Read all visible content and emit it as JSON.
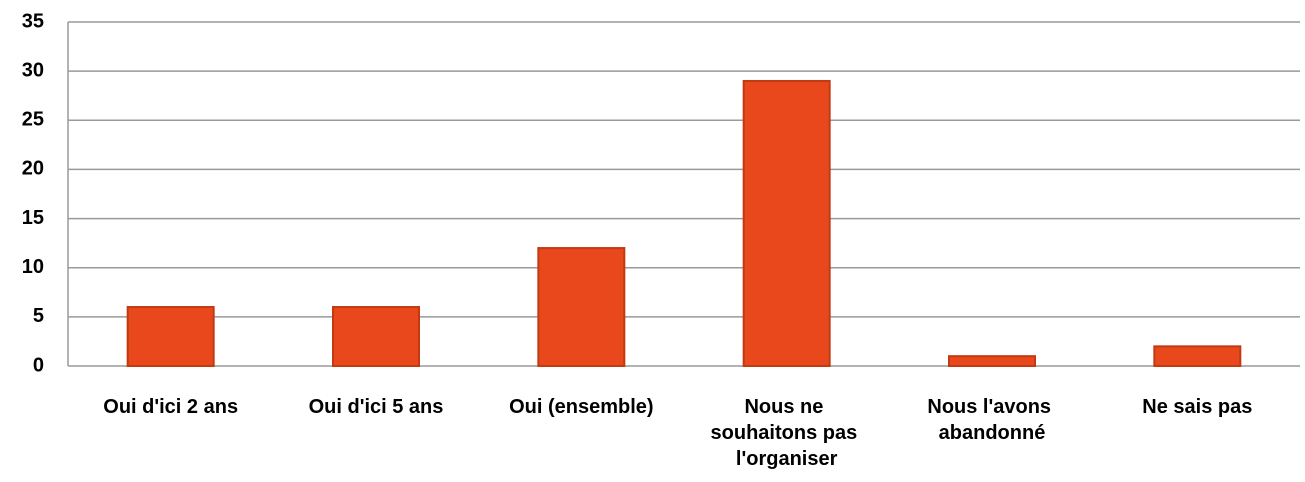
{
  "chart_data": {
    "type": "bar",
    "categories": [
      "Oui d'ici 2 ans",
      "Oui d'ici 5 ans",
      "Oui (ensemble)",
      "Nous ne souhaitons pas l'organiser",
      "Nous l'avons abandonné",
      "Ne sais pas"
    ],
    "values": [
      6,
      6,
      12,
      29,
      1,
      2
    ],
    "color": "#e8481c",
    "ylim": [
      0,
      35
    ],
    "yticks": [
      0,
      5,
      10,
      15,
      20,
      25,
      30,
      35
    ],
    "grid": true
  }
}
